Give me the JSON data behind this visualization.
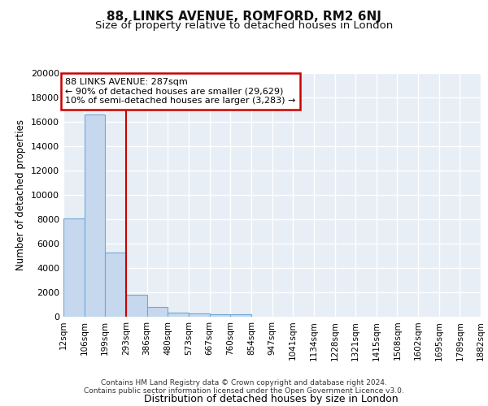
{
  "title_line1": "88, LINKS AVENUE, ROMFORD, RM2 6NJ",
  "title_line2": "Size of property relative to detached houses in London",
  "xlabel": "Distribution of detached houses by size in London",
  "ylabel": "Number of detached properties",
  "bin_edges": [
    12,
    106,
    199,
    293,
    386,
    480,
    573,
    667,
    760,
    854,
    947,
    1041,
    1134,
    1228,
    1321,
    1415,
    1508,
    1602,
    1695,
    1789,
    1882
  ],
  "bar_heights": [
    8100,
    16600,
    5300,
    1800,
    800,
    350,
    280,
    220,
    210,
    0,
    0,
    0,
    0,
    0,
    0,
    0,
    0,
    0,
    0,
    0
  ],
  "bar_color": "#c5d8ee",
  "bar_edge_color": "#6fa8d5",
  "red_line_x": 293,
  "ylim": [
    0,
    20000
  ],
  "yticks": [
    0,
    2000,
    4000,
    6000,
    8000,
    10000,
    12000,
    14000,
    16000,
    18000,
    20000
  ],
  "annotation_line1": "88 LINKS AVENUE: 287sqm",
  "annotation_line2": "← 90% of detached houses are smaller (29,629)",
  "annotation_line3": "10% of semi-detached houses are larger (3,283) →",
  "annotation_box_color": "#ffffff",
  "annotation_box_edge_color": "#cc0000",
  "background_color": "#e8eef5",
  "grid_color": "#ffffff",
  "footnote_line1": "Contains HM Land Registry data © Crown copyright and database right 2024.",
  "footnote_line2": "Contains public sector information licensed under the Open Government Licence v3.0.",
  "title_fontsize": 11,
  "subtitle_fontsize": 9.5,
  "tick_label_fontsize": 7.5,
  "ylabel_fontsize": 8.5,
  "xlabel_fontsize": 9,
  "annotation_fontsize": 8,
  "footnote_fontsize": 6.5
}
